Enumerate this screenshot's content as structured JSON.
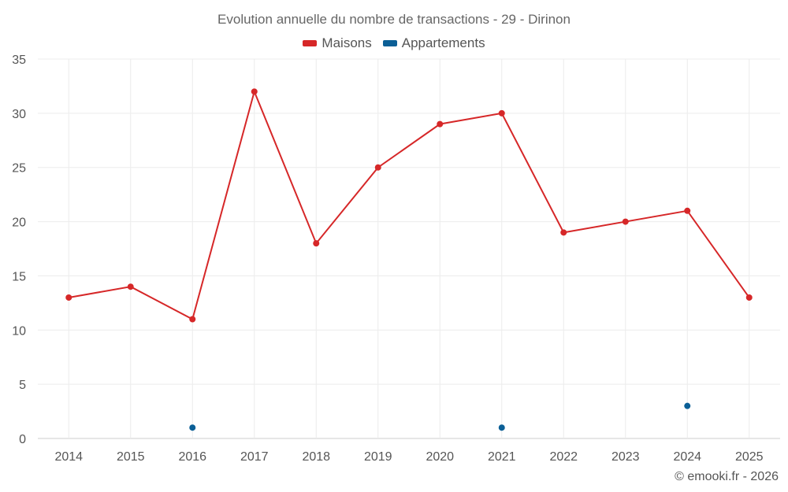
{
  "chart_data": {
    "type": "line",
    "title": "Evolution annuelle du nombre de transactions - 29 - Dirinon",
    "xlabel": "",
    "ylabel": "",
    "categories": [
      "2014",
      "2015",
      "2016",
      "2017",
      "2018",
      "2019",
      "2020",
      "2021",
      "2022",
      "2023",
      "2024",
      "2025"
    ],
    "ylim": [
      0,
      35
    ],
    "yticks": [
      0,
      5,
      10,
      15,
      20,
      25,
      30,
      35
    ],
    "grid": true,
    "legend_position": "top-center",
    "series": [
      {
        "name": "Maisons",
        "color": "#d62728",
        "style": "line",
        "values": [
          13,
          14,
          11,
          32,
          18,
          25,
          29,
          30,
          19,
          20,
          21,
          13
        ]
      },
      {
        "name": "Appartements",
        "color": "#0b5f96",
        "style": "markers",
        "values": [
          null,
          null,
          1,
          null,
          null,
          null,
          null,
          1,
          null,
          null,
          3,
          null
        ]
      }
    ]
  },
  "credit": "© emooki.fr - 2026"
}
